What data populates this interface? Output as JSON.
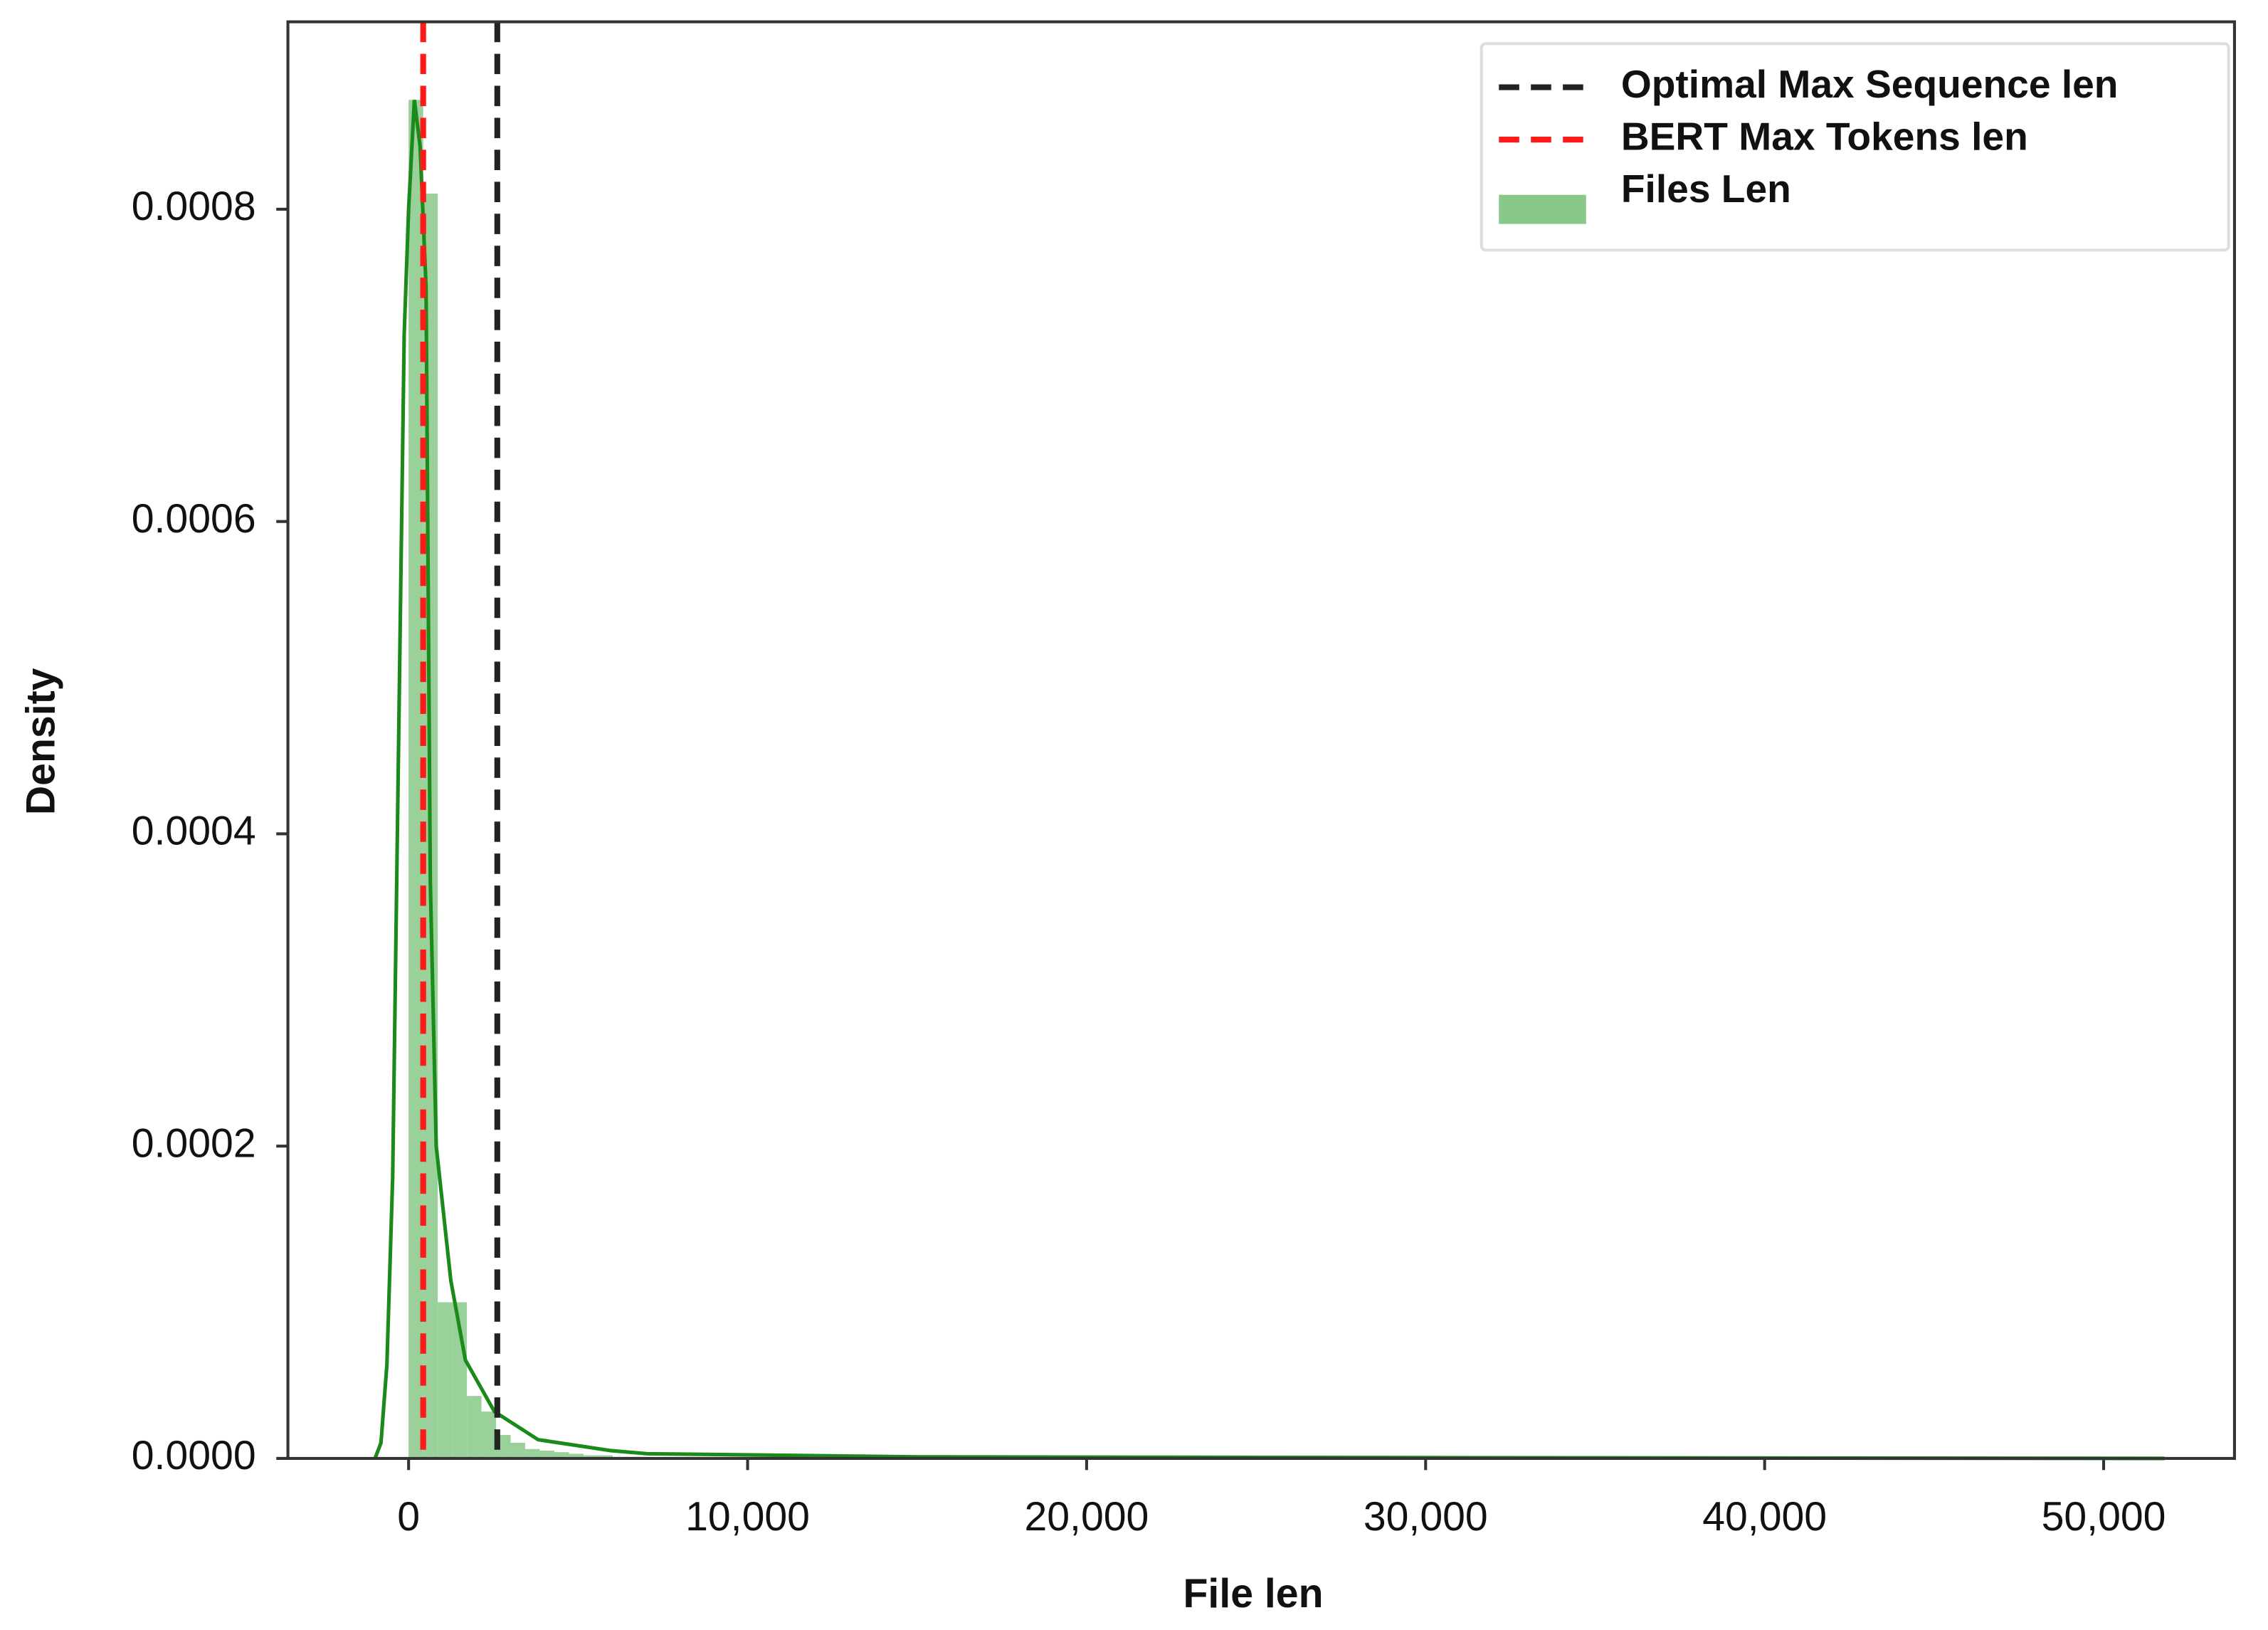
{
  "chart_data": {
    "type": "histogram",
    "xlabel": "File len",
    "ylabel": "Density",
    "xlim": [
      -3560,
      53860
    ],
    "ylim": [
      0,
      0.00092
    ],
    "xticks": [
      0,
      {
        "value": 10000,
        "label": "10,000"
      },
      {
        "value": 20000,
        "label": "20,000"
      },
      {
        "value": 30000,
        "label": "30,000"
      },
      {
        "value": 40000,
        "label": "40,000"
      },
      {
        "value": 50000,
        "label": "50,000"
      }
    ],
    "yticks": [
      {
        "value": 0,
        "label": "0.0000"
      },
      {
        "value": 0.0002,
        "label": "0.0002"
      },
      {
        "value": 0.0004,
        "label": "0.0004"
      },
      {
        "value": 0.0006,
        "label": "0.0006"
      },
      {
        "value": 0.0008,
        "label": "0.0008"
      }
    ],
    "series": [
      {
        "name": "Files Len",
        "color": "#88c888",
        "bins": [
          0,
          430,
          860,
          1290,
          1720,
          2150,
          2580,
          3010,
          3440,
          3870,
          4300,
          4730,
          5160,
          5590,
          6020,
          6450,
          6880
        ],
        "values": [
          0.00087,
          0.00081,
          0.0001,
          0.0001,
          4e-05,
          3e-05,
          1.5e-05,
          1e-05,
          6e-06,
          5e-06,
          4e-06,
          3e-06,
          2e-06,
          2e-06,
          1e-06,
          1e-06
        ]
      }
    ],
    "kde": {
      "color": "#1a8a1a",
      "x": [
        -990,
        -815,
        -640,
        -470,
        -300,
        -130,
        0,
        170,
        340,
        515,
        640,
        815,
        1245,
        1675,
        2530,
        3820,
        5960,
        7040,
        15000,
        30000,
        51800
      ],
      "y": [
        0,
        1e-05,
        6e-05,
        0.00018,
        0.00045,
        0.00072,
        0.0008,
        0.00087,
        0.00084,
        0.00075,
        0.00037,
        0.0002,
        0.000114,
        6.3e-05,
        3e-05,
        1.2e-05,
        5e-06,
        3e-06,
        1e-06,
        5e-07,
        0
      ]
    },
    "vlines": [
      {
        "name": "Optimal Max Sequence len",
        "x": 2616,
        "color": "#222222"
      },
      {
        "name": "BERT Max Tokens len",
        "x": 430,
        "color": "#ff1a1a"
      }
    ],
    "legend": "upper right"
  }
}
